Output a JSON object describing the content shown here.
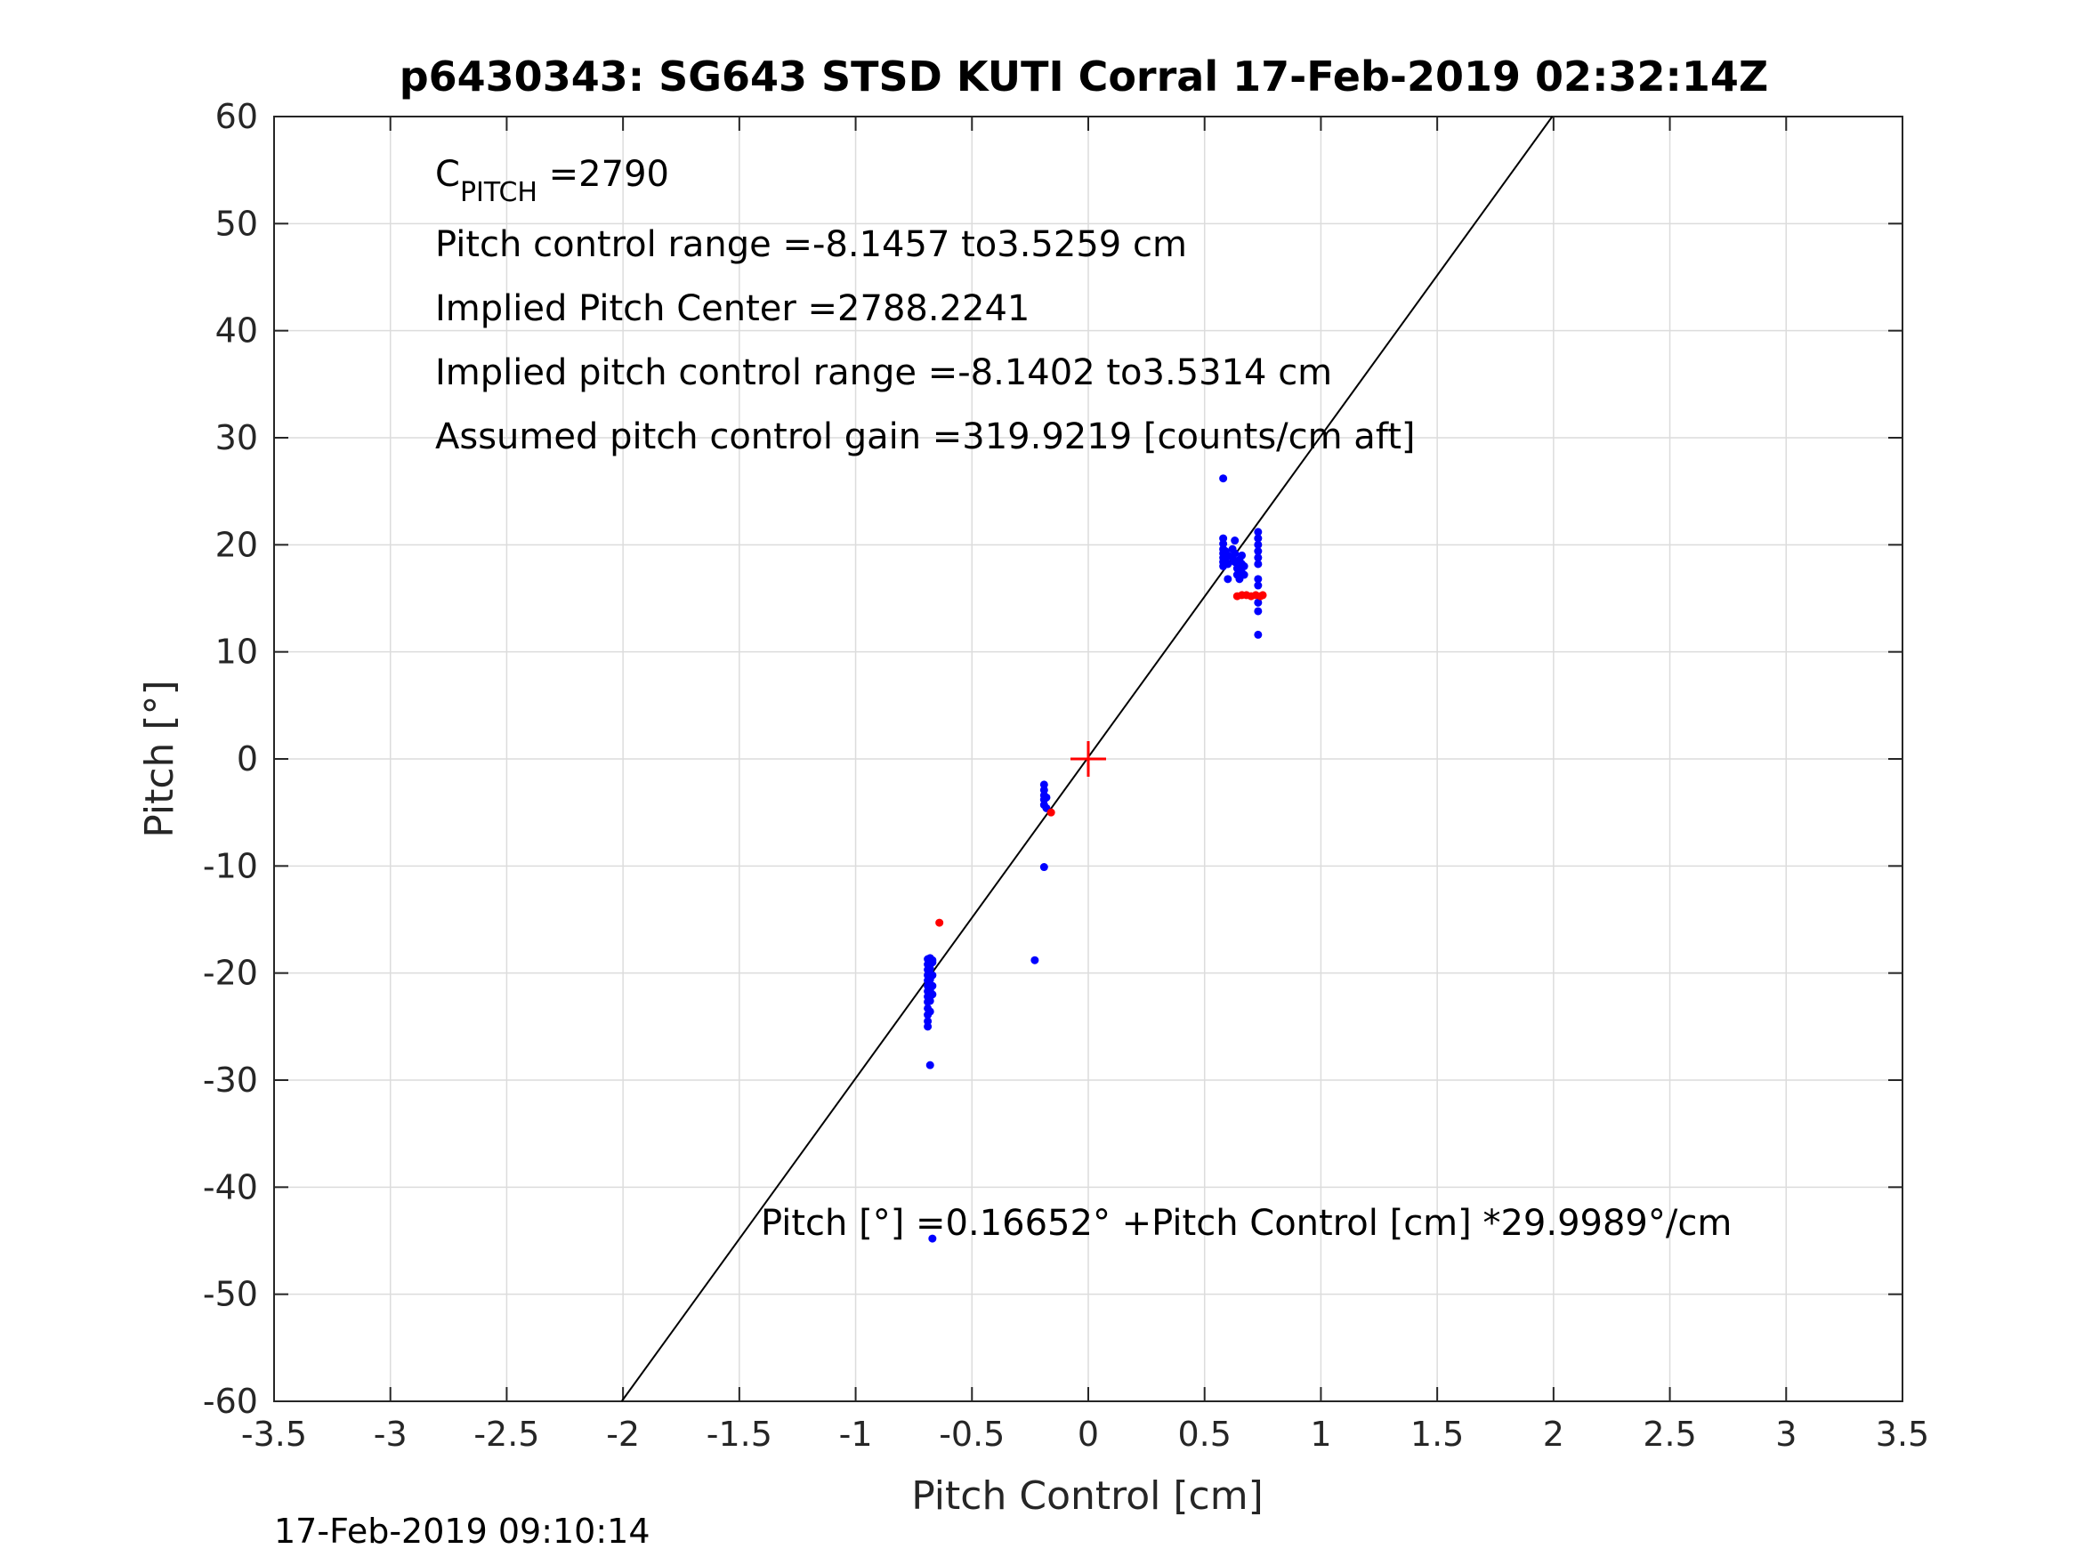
{
  "chart_data": {
    "type": "scatter",
    "title": "p6430343: SG643 STSD KUTI Corral 17-Feb-2019 02:32:14Z",
    "xlabel": "Pitch Control [cm]",
    "ylabel": "Pitch [°]",
    "xlim": [
      -3.5,
      3.5
    ],
    "ylim": [
      -60,
      60
    ],
    "grid": true,
    "x_ticks": [
      "-3.5",
      "-3",
      "-2.5",
      "-2",
      "-1.5",
      "-1",
      "-0.5",
      "0",
      "0.5",
      "1",
      "1.5",
      "2",
      "2.5",
      "3",
      "3.5"
    ],
    "y_ticks": [
      "60",
      "50",
      "40",
      "30",
      "20",
      "10",
      "0",
      "-10",
      "-20",
      "-30",
      "-40",
      "-50",
      "-60"
    ],
    "annotations": {
      "c_pitch_main": "C",
      "c_pitch_sub": "PITCH",
      "c_pitch_value": " =2790",
      "pitch_control_range": "Pitch control range =-8.1457 to3.5259 cm",
      "implied_pitch_center": "Implied Pitch Center =2788.2241",
      "implied_pitch_control_range": "Implied pitch control range =-8.1402 to3.5314 cm",
      "assumed_gain": "Assumed pitch control gain =319.9219 [counts/cm aft]",
      "fit_equation": "Pitch [°] =0.16652° +Pitch Control [cm] *29.9989°/cm"
    },
    "fit_line": {
      "intercept": 0.16652,
      "slope": 29.9989,
      "color": "#000000"
    },
    "center_marker": {
      "x": 0,
      "y": 0,
      "color": "#ff0000"
    },
    "series": [
      {
        "color": "#0000ff",
        "points": [
          [
            0.58,
            26.2
          ],
          [
            0.58,
            20.6
          ],
          [
            0.58,
            20.1
          ],
          [
            0.58,
            19.6
          ],
          [
            0.58,
            19.2
          ],
          [
            0.58,
            18.8
          ],
          [
            0.58,
            18.4
          ],
          [
            0.58,
            18.0
          ],
          [
            0.59,
            19.4
          ],
          [
            0.59,
            18.6
          ],
          [
            0.6,
            18.2
          ],
          [
            0.6,
            19.0
          ],
          [
            0.6,
            16.8
          ],
          [
            0.62,
            19.6
          ],
          [
            0.62,
            18.8
          ],
          [
            0.63,
            20.4
          ],
          [
            0.63,
            19.2
          ],
          [
            0.63,
            18.4
          ],
          [
            0.64,
            17.8
          ],
          [
            0.64,
            17.2
          ],
          [
            0.65,
            18.6
          ],
          [
            0.65,
            17.6
          ],
          [
            0.65,
            16.8
          ],
          [
            0.66,
            18.2
          ],
          [
            0.66,
            19.0
          ],
          [
            0.66,
            17.4
          ],
          [
            0.67,
            18.0
          ],
          [
            0.67,
            17.2
          ],
          [
            0.73,
            21.2
          ],
          [
            0.73,
            20.6
          ],
          [
            0.73,
            20.0
          ],
          [
            0.73,
            19.4
          ],
          [
            0.73,
            18.8
          ],
          [
            0.73,
            18.2
          ],
          [
            0.73,
            16.8
          ],
          [
            0.73,
            16.2
          ],
          [
            0.73,
            14.6
          ],
          [
            0.73,
            13.8
          ],
          [
            0.73,
            11.6
          ],
          [
            -0.19,
            -2.4
          ],
          [
            -0.19,
            -2.9
          ],
          [
            -0.19,
            -3.4
          ],
          [
            -0.19,
            -3.8
          ],
          [
            -0.19,
            -4.3
          ],
          [
            -0.18,
            -4.6
          ],
          [
            -0.18,
            -3.6
          ],
          [
            -0.19,
            -10.1
          ],
          [
            -0.23,
            -18.8
          ],
          [
            -0.69,
            -18.7
          ],
          [
            -0.69,
            -19.2
          ],
          [
            -0.69,
            -19.7
          ],
          [
            -0.69,
            -20.2
          ],
          [
            -0.69,
            -20.7
          ],
          [
            -0.69,
            -21.2
          ],
          [
            -0.69,
            -21.7
          ],
          [
            -0.69,
            -22.2
          ],
          [
            -0.69,
            -22.7
          ],
          [
            -0.69,
            -23.3
          ],
          [
            -0.69,
            -23.9
          ],
          [
            -0.69,
            -24.5
          ],
          [
            -0.69,
            -25.0
          ],
          [
            -0.68,
            -18.6
          ],
          [
            -0.68,
            -19.6
          ],
          [
            -0.68,
            -20.6
          ],
          [
            -0.68,
            -21.6
          ],
          [
            -0.68,
            -22.6
          ],
          [
            -0.68,
            -23.6
          ],
          [
            -0.67,
            -19.0
          ],
          [
            -0.67,
            -20.2
          ],
          [
            -0.67,
            -21.2
          ],
          [
            -0.67,
            -22.0
          ],
          [
            -0.67,
            -18.8
          ],
          [
            -0.68,
            -28.6
          ],
          [
            -0.67,
            -44.8
          ]
        ]
      },
      {
        "color": "#ff0000",
        "points": [
          [
            0.64,
            15.2
          ],
          [
            0.66,
            15.3
          ],
          [
            0.68,
            15.3
          ],
          [
            0.7,
            15.2
          ],
          [
            0.72,
            15.3
          ],
          [
            0.74,
            15.2
          ],
          [
            0.75,
            15.3
          ],
          [
            -0.16,
            -5.0
          ],
          [
            -0.64,
            -15.3
          ]
        ]
      }
    ]
  },
  "footer": {
    "timestamp": "17-Feb-2019 09:10:14"
  }
}
